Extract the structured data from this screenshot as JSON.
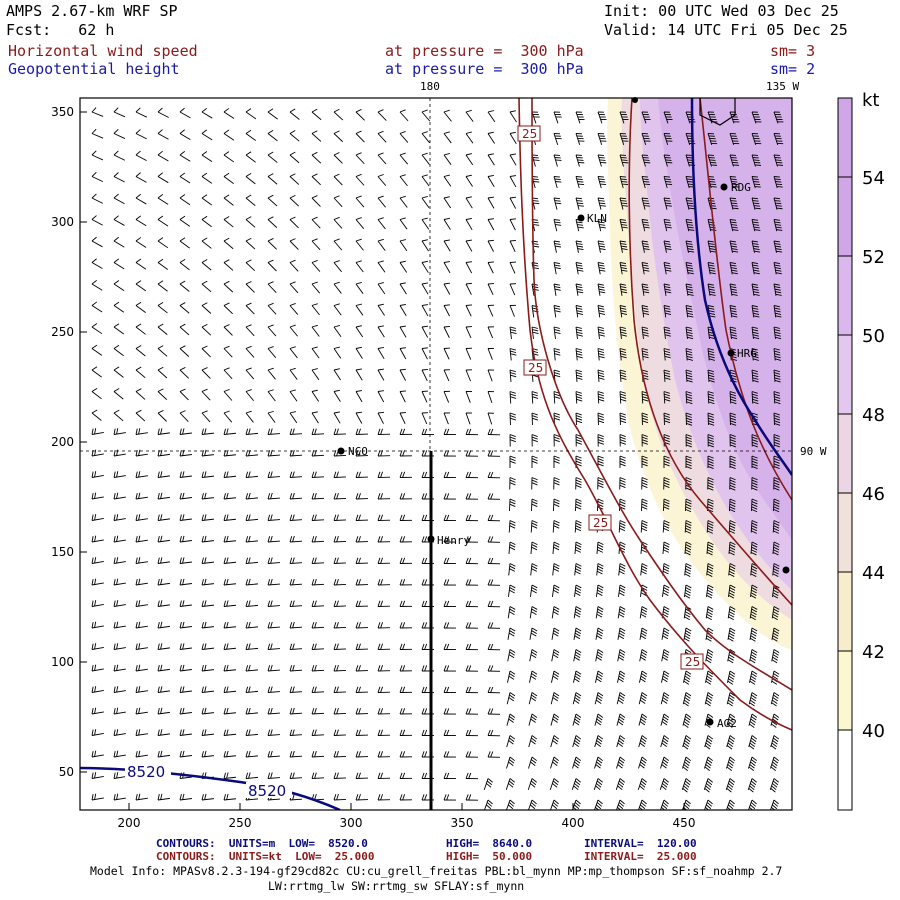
{
  "header": {
    "model": "AMPS 2.67-km WRF SP",
    "forecast": "Fcst:   62 h",
    "init": "Init: 00 UTC Wed 03 Dec 25",
    "valid": "Valid: 14 UTC Fri 05 Dec 25",
    "field1": "Horizontal wind speed",
    "field1_level": "at pressure =  300 hPa",
    "field1_sm": "sm= 3",
    "field2": "Geopotential height",
    "field2_level": "at pressure =  300 hPa",
    "field2_sm": "sm= 2"
  },
  "map": {
    "meridian_label_top": "180",
    "meridian_label_135": "135 W",
    "parallel_label_right": "90 W",
    "x_ticks": [
      "200",
      "250",
      "300",
      "350",
      "400",
      "450"
    ],
    "y_ticks": [
      "50",
      "100",
      "150",
      "200",
      "250",
      "300",
      "350"
    ],
    "speed_contour_label": "25",
    "height_contour_label": "8520",
    "stations": [
      "NCO",
      "Henry",
      "KLN",
      "RDG",
      "HRG",
      "AG2"
    ]
  },
  "colorbar": {
    "unit": "kt",
    "labels": [
      "40",
      "42",
      "44",
      "46",
      "48",
      "50",
      "52",
      "54"
    ],
    "colors": [
      "#fdfde6",
      "#fbf7cf",
      "#f7eccd",
      "#f1e1db",
      "#ecd6e6",
      "#e4c7ee",
      "#dab7ec",
      "#cfa6e6"
    ]
  },
  "footer": {
    "row1_a": "CONTOURS:  UNITS=m  LOW=  8520.0",
    "row1_b": "HIGH=  8640.0",
    "row1_c": "INTERVAL=  120.00",
    "row2_a": "CONTOURS:  UNITS=kt  LOW=  25.000",
    "row2_b": "HIGH=  50.000",
    "row2_c": "INTERVAL=  25.000",
    "model_info": "Model Info: MPASv8.2.3-194-gf29cd82c CU:cu_grell_freitas PBL:bl_mynn MP:mp_thompson SF:sf_noahmp 2.7",
    "model_info2": "LW:rrtmg_lw SW:rrtmg_sw SFLAY:sf_mynn"
  }
}
